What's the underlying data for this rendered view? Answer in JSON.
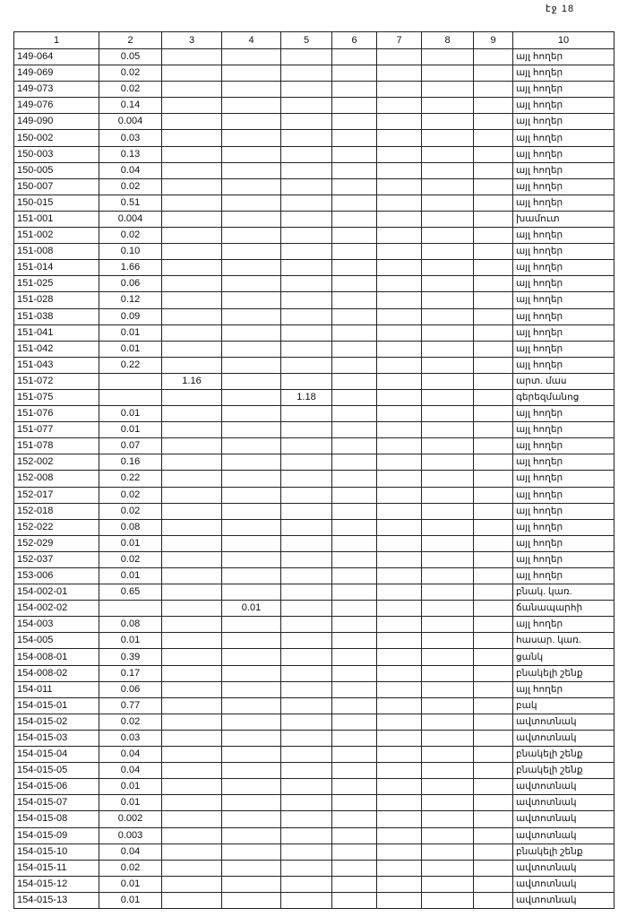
{
  "page_label": "էջ 18",
  "headers": [
    "1",
    "2",
    "3",
    "4",
    "5",
    "6",
    "7",
    "8",
    "9",
    "10"
  ],
  "rows": [
    [
      "149-064",
      "0.05",
      "",
      "",
      "",
      "այլ հողեր"
    ],
    [
      "149-069",
      "0.02",
      "",
      "",
      "",
      "այլ հողեր"
    ],
    [
      "149-073",
      "0.02",
      "",
      "",
      "",
      "այլ հողեր"
    ],
    [
      "149-076",
      "0.14",
      "",
      "",
      "",
      "այլ հողեր"
    ],
    [
      "149-090",
      "0.004",
      "",
      "",
      "",
      "այլ հողեր"
    ],
    [
      "150-002",
      "0.03",
      "",
      "",
      "",
      "այլ հողեր"
    ],
    [
      "150-003",
      "0.13",
      "",
      "",
      "",
      "այլ հողեր"
    ],
    [
      "150-005",
      "0.04",
      "",
      "",
      "",
      "այլ հողեր"
    ],
    [
      "150-007",
      "0.02",
      "",
      "",
      "",
      "այլ հողեր"
    ],
    [
      "150-015",
      "0.51",
      "",
      "",
      "",
      "այլ հողեր"
    ],
    [
      "151-001",
      "0.004",
      "",
      "",
      "",
      "խամուտ"
    ],
    [
      "151-002",
      "0.02",
      "",
      "",
      "",
      "այլ հողեր"
    ],
    [
      "151-008",
      "0.10",
      "",
      "",
      "",
      "այլ հողեր"
    ],
    [
      "151-014",
      "1.66",
      "",
      "",
      "",
      "այլ հողեր"
    ],
    [
      "151-025",
      "0.06",
      "",
      "",
      "",
      "այլ հողեր"
    ],
    [
      "151-028",
      "0.12",
      "",
      "",
      "",
      "այլ հողեր"
    ],
    [
      "151-038",
      "0.09",
      "",
      "",
      "",
      "այլ հողեր"
    ],
    [
      "151-041",
      "0.01",
      "",
      "",
      "",
      "այլ հողեր"
    ],
    [
      "151-042",
      "0.01",
      "",
      "",
      "",
      "այլ հողեր"
    ],
    [
      "151-043",
      "0.22",
      "",
      "",
      "",
      "այլ հողեր"
    ],
    [
      "151-072",
      "",
      "1.16",
      "",
      "",
      "արտ. մաս"
    ],
    [
      "151-075",
      "",
      "",
      "",
      "1.18",
      "գերեզմանոց"
    ],
    [
      "151-076",
      "0.01",
      "",
      "",
      "",
      "այլ հողեր"
    ],
    [
      "151-077",
      "0.01",
      "",
      "",
      "",
      "այլ հողեր"
    ],
    [
      "151-078",
      "0.07",
      "",
      "",
      "",
      "այլ հողեր"
    ],
    [
      "152-002",
      "0.16",
      "",
      "",
      "",
      "այլ հողեր"
    ],
    [
      "152-008",
      "0.22",
      "",
      "",
      "",
      "այլ հողեր"
    ],
    [
      "152-017",
      "0.02",
      "",
      "",
      "",
      "այլ հողեր"
    ],
    [
      "152-018",
      "0.02",
      "",
      "",
      "",
      "այլ հողեր"
    ],
    [
      "152-022",
      "0.08",
      "",
      "",
      "",
      "այլ հողեր"
    ],
    [
      "152-029",
      "0.01",
      "",
      "",
      "",
      "այլ հողեր"
    ],
    [
      "152-037",
      "0.02",
      "",
      "",
      "",
      "այլ հողեր"
    ],
    [
      "153-006",
      "0.01",
      "",
      "",
      "",
      "այլ հողեր"
    ],
    [
      "154-002-01",
      "0.65",
      "",
      "",
      "",
      "բնակ. կառ."
    ],
    [
      "154-002-02",
      "",
      "",
      "0.01",
      "",
      "ճանապարհի"
    ],
    [
      "154-003",
      "0.08",
      "",
      "",
      "",
      "այլ հողեր"
    ],
    [
      "154-005",
      "0.01",
      "",
      "",
      "",
      "հասար. կառ."
    ],
    [
      "154-008-01",
      "0.39",
      "",
      "",
      "",
      "ցանկ"
    ],
    [
      "154-008-02",
      "0.17",
      "",
      "",
      "",
      "բնակելի շենք"
    ],
    [
      "154-011",
      "0.06",
      "",
      "",
      "",
      "այլ հողեր"
    ],
    [
      "154-015-01",
      "0.77",
      "",
      "",
      "",
      "բակ"
    ],
    [
      "154-015-02",
      "0.02",
      "",
      "",
      "",
      "ավտոտնակ"
    ],
    [
      "154-015-03",
      "0.03",
      "",
      "",
      "",
      "ավտոտնակ"
    ],
    [
      "154-015-04",
      "0.04",
      "",
      "",
      "",
      "բնակելի շենք"
    ],
    [
      "154-015-05",
      "0.04",
      "",
      "",
      "",
      "բնակելի շենք"
    ],
    [
      "154-015-06",
      "0.01",
      "",
      "",
      "",
      "ավտոտնակ"
    ],
    [
      "154-015-07",
      "0.01",
      "",
      "",
      "",
      "ավտոտնակ"
    ],
    [
      "154-015-08",
      "0.002",
      "",
      "",
      "",
      "ավտոտնակ"
    ],
    [
      "154-015-09",
      "0.003",
      "",
      "",
      "",
      "ավտոտնակ"
    ],
    [
      "154-015-10",
      "0.04",
      "",
      "",
      "",
      "բնակելի շենք"
    ],
    [
      "154-015-11",
      "0.02",
      "",
      "",
      "",
      "ավտոտնակ"
    ],
    [
      "154-015-12",
      "0.01",
      "",
      "",
      "",
      "ավտոտնակ"
    ],
    [
      "154-015-13",
      "0.01",
      "",
      "",
      "",
      "ավտոտնակ"
    ]
  ]
}
